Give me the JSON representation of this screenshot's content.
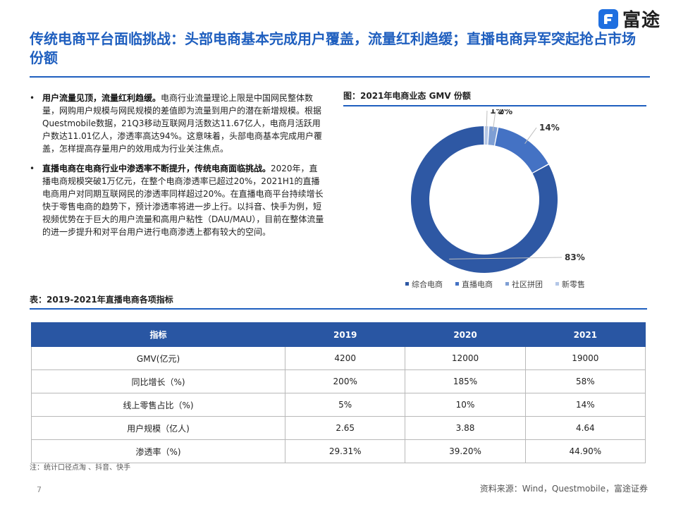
{
  "brand": {
    "name": "富途"
  },
  "title": "传统电商平台面临挑战：头部电商基本完成用户覆盖，流量红利趋缓；直播电商异军突起抢占市场份额",
  "bullets": [
    {
      "marker": "•",
      "lead": "用户流量见顶，流量红利趋缓。",
      "body": "电商行业流量理论上限是中国网民整体数量，网购用户规模与网民规模的差值即为流量到用户的潜在新增规模。根据Questmobile数据，21Q3移动互联网月活数达11.67亿人，电商月活跃用户数达11.01亿人，渗透率高达94%。这意味着，头部电商基本完成用户覆盖，怎样提高存量用户的效用成为行业关注焦点。"
    },
    {
      "marker": "•",
      "lead": "直播电商在电商行业中渗透率不断提升，传统电商面临挑战。",
      "body": "2020年，直播电商规模突破1万亿元，在整个电商渗透率已超过20%，2021H1的直播电商用户对同期互联网民的渗透率同样超过20%。在直播电商平台持续增长快于零售电商的趋势下，预计渗透率将进一步上行。以抖音、快手为例，短视频优势在于巨大的用户流量和高用户粘性（DAU/MAU），目前在整体流量的进一步提升和对平台用户进行电商渗透上都有较大的空间。"
    }
  ],
  "figure": {
    "title": "图：2021年电商业态 GMV 份额"
  },
  "chart_data": {
    "type": "pie",
    "title": "图：2021年电商业态 GMV 份额",
    "categories": [
      "综合电商",
      "直播电商",
      "社区拼团",
      "新零售"
    ],
    "values": [
      83,
      14,
      2,
      1
    ],
    "labels": [
      "83%",
      "14%",
      "2%",
      "1%"
    ],
    "colors": [
      "#2e58a4",
      "#4472c4",
      "#7f9fd4",
      "#b4c7e7"
    ],
    "legend_position": "bottom"
  },
  "table": {
    "title": "表：2019-2021年直播电商各项指标",
    "headers": [
      "指标",
      "2019",
      "2020",
      "2021"
    ],
    "rows": [
      [
        "GMV(亿元)",
        "4200",
        "12000",
        "19000"
      ],
      [
        "同比增长（%)",
        "200%",
        "185%",
        "58%"
      ],
      [
        "线上零售占比（%)",
        "5%",
        "10%",
        "14%"
      ],
      [
        "用户规模（亿人)",
        "2.65",
        "3.88",
        "4.64"
      ],
      [
        "渗透率（%)",
        "29.31%",
        "39.20%",
        "44.90%"
      ]
    ],
    "header_color": "#2956a3"
  },
  "note": "注：统计口径点淘 、抖音、快手",
  "page_number": "7",
  "source": "资料来源：Wind，Questmobile，富途证券",
  "colors": {
    "accent": "#1f5fbf"
  }
}
